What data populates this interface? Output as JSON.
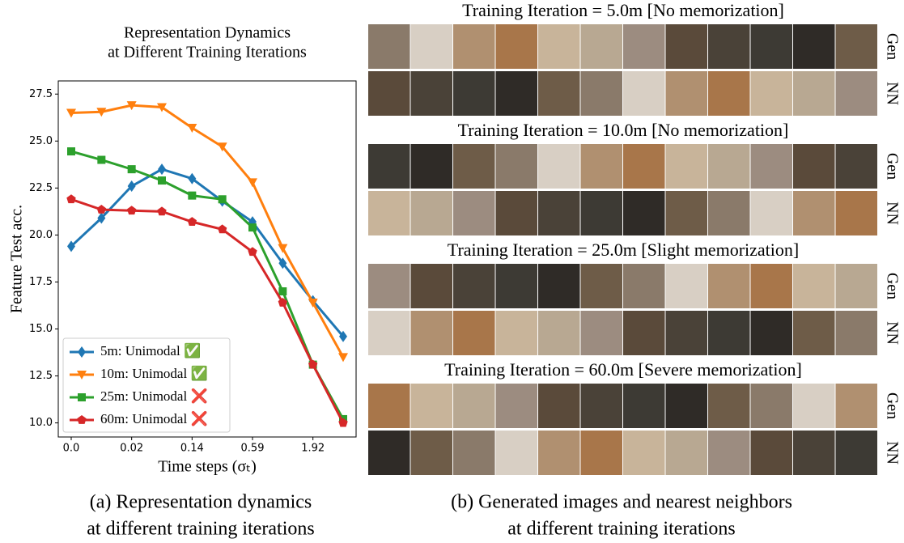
{
  "chart_data": {
    "type": "line",
    "title": [
      "Representation Dynamics",
      "at Different Training Iterations"
    ],
    "x_label": "Time steps (σₜ)",
    "y_label": "Feature Test acc.",
    "categories": [
      "0.0",
      null,
      "0.02",
      null,
      "0.14",
      null,
      "0.59",
      null,
      "1.92",
      null
    ],
    "ylim": [
      9.25,
      28.2
    ],
    "yticks": [
      {
        "value": 10,
        "label": "10.0"
      },
      12.5,
      {
        "value": 15,
        "label": "15.0"
      },
      17.5,
      {
        "value": 20,
        "label": "20.0"
      },
      22.5,
      {
        "value": 25,
        "label": "25.0"
      },
      27.5
    ],
    "grid": false,
    "legend": "lower left",
    "series": [
      {
        "name": "5m: Unimodal ✅",
        "color": "#1f77b4",
        "marker": "diamond",
        "values": [
          19.4,
          20.9,
          22.6,
          23.5,
          23.0,
          21.8,
          20.7,
          18.5,
          16.5,
          14.6
        ]
      },
      {
        "name": "10m: Unimodal ✅",
        "color": "#ff7f0e",
        "marker": "triangle-down",
        "values": [
          26.5,
          26.55,
          26.9,
          26.8,
          25.7,
          24.7,
          22.8,
          19.3,
          16.4,
          13.5
        ]
      },
      {
        "name": "25m: Unimodal ❌",
        "color": "#2ca02c",
        "marker": "square",
        "values": [
          24.45,
          24.0,
          23.5,
          22.9,
          22.1,
          21.9,
          20.4,
          17.0,
          13.1,
          10.2
        ]
      },
      {
        "name": "60m: Unimodal ❌",
        "color": "#d62728",
        "marker": "pentagon",
        "values": [
          21.9,
          21.35,
          21.3,
          21.25,
          20.7,
          20.3,
          19.1,
          16.4,
          13.1,
          10.0
        ]
      }
    ]
  },
  "image_grid": {
    "blocks": [
      {
        "title": "Training Iteration = 5.0m [No memorization]"
      },
      {
        "title": "Training Iteration = 10.0m [No memorization]"
      },
      {
        "title": "Training Iteration = 25.0m [Slight memorization]"
      },
      {
        "title": "Training Iteration = 60.0m [Severe memorization]"
      }
    ],
    "row_labels": [
      "Gen",
      "NN"
    ]
  },
  "captions": [
    [
      "(a) Representation dynamics",
      "at different training iterations"
    ],
    [
      "(b) Generated images and nearest neighbors",
      "at different training iterations"
    ]
  ]
}
